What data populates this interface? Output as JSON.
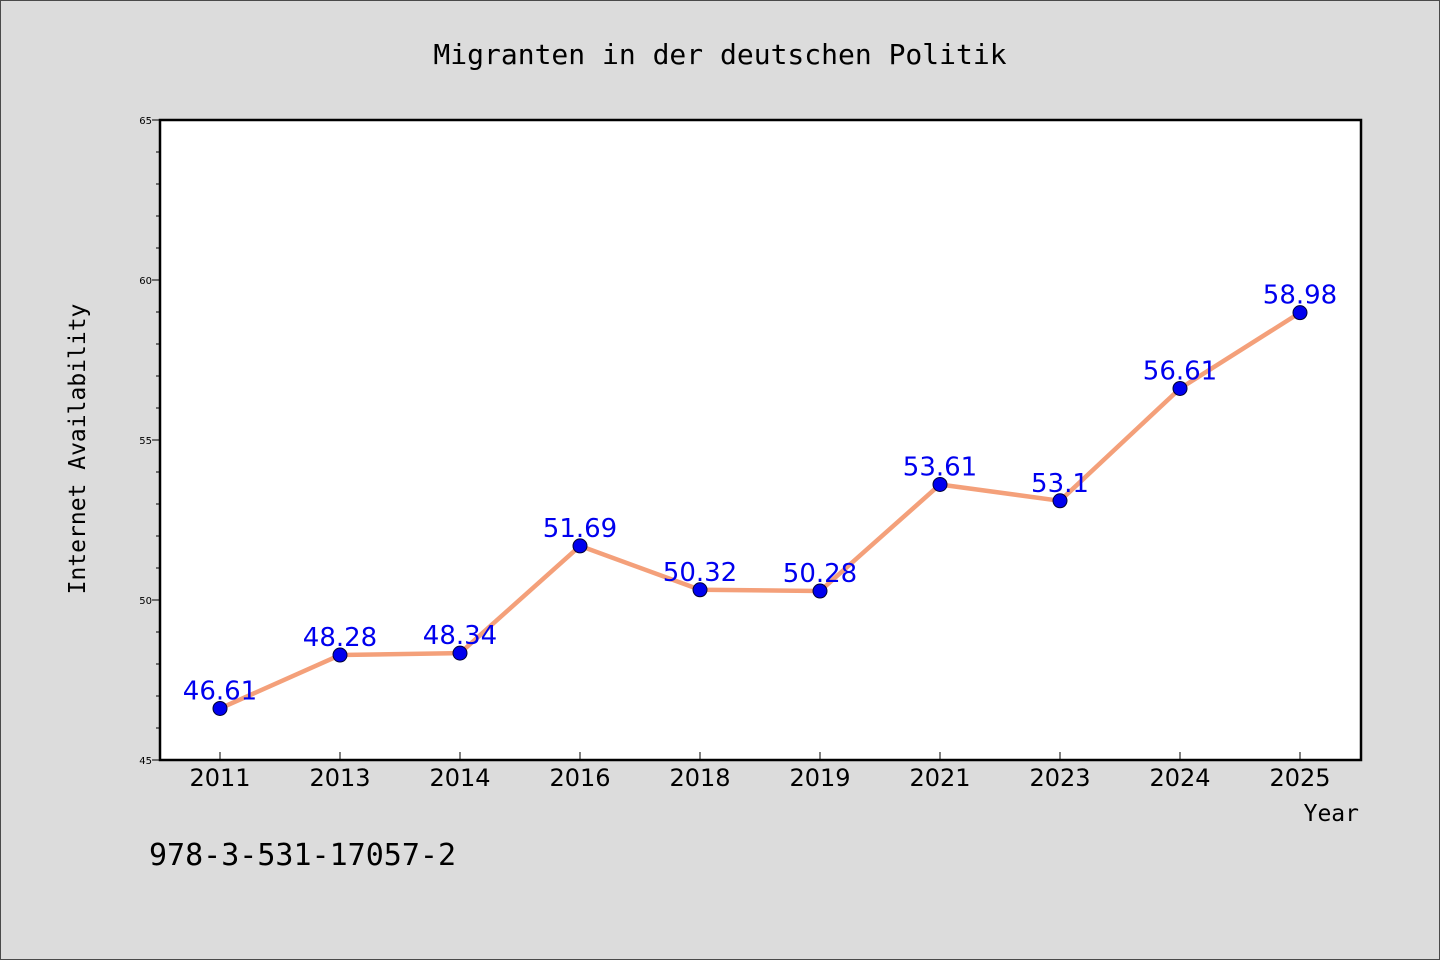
{
  "chart_data": {
    "type": "line",
    "title": "Migranten in der deutschen Politik",
    "xlabel": "Year",
    "ylabel": "Internet Availability",
    "categories": [
      "2011",
      "2013",
      "2014",
      "2016",
      "2018",
      "2019",
      "2021",
      "2023",
      "2024",
      "2025"
    ],
    "series": [
      {
        "values": [
          46.61,
          48.28,
          48.34,
          51.69,
          50.32,
          50.28,
          53.61,
          53.1,
          56.61,
          58.98
        ],
        "data_labels": [
          "46.61",
          "48.28",
          "48.34",
          "51.69",
          "50.32",
          "50.28",
          "53.61",
          "53.1",
          "56.61",
          "58.98"
        ]
      }
    ],
    "ylim": [
      45,
      65
    ],
    "y_ticks": [
      "45",
      "50",
      "55",
      "60",
      "65"
    ],
    "grid": false,
    "legend": "none",
    "line_color": "#f4a07a",
    "marker_color": "#0000ee",
    "label_color": "#0000ee"
  },
  "annotation": {
    "isbn": "978-3-531-17057-2"
  },
  "colors": {
    "figure_background": "#dcdcdc",
    "plot_background": "#ffffff",
    "axes": "#000000"
  }
}
